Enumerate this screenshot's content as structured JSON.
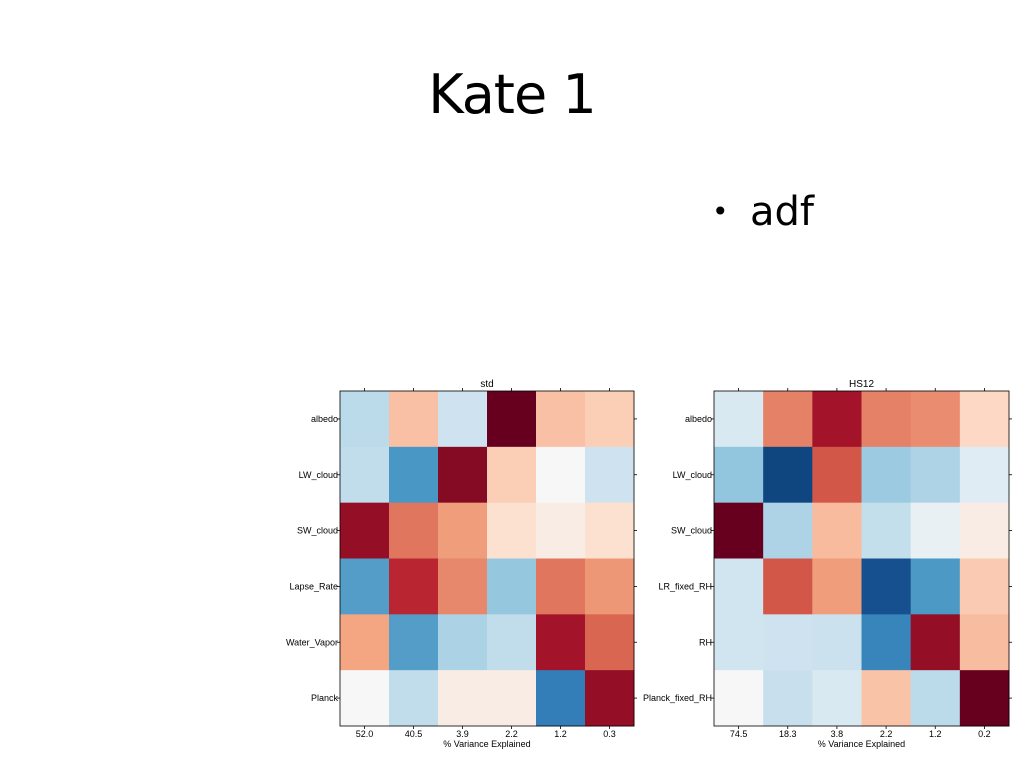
{
  "slide": {
    "title": "Kate 1",
    "bullets": [
      "adf"
    ]
  },
  "chart_data": [
    {
      "type": "heatmap",
      "title": "std",
      "xlabel": "% Variance Explained",
      "ylabel": "",
      "x": [
        "52.0",
        "40.5",
        "3.9",
        "2.2",
        "1.2",
        "0.3"
      ],
      "y": [
        "albedo",
        "LW_cloud",
        "SW_cloud",
        "Lapse_Rate",
        "Water_Vapor",
        "Planck"
      ],
      "colormap": "RdBu_r",
      "vlim": [
        -1,
        1
      ],
      "values": [
        [
          -0.12,
          0.15,
          -0.06,
          1.0,
          0.15,
          0.1
        ],
        [
          -0.1,
          -0.48,
          0.9,
          0.1,
          0.0,
          -0.06
        ],
        [
          0.85,
          0.42,
          0.28,
          0.04,
          0.02,
          0.04
        ],
        [
          -0.45,
          0.7,
          0.36,
          -0.24,
          0.42,
          0.3
        ],
        [
          0.25,
          -0.45,
          -0.17,
          -0.1,
          0.8,
          0.48
        ],
        [
          0.0,
          -0.1,
          0.02,
          0.02,
          -0.62,
          0.85
        ]
      ]
    },
    {
      "type": "heatmap",
      "title": "HS12",
      "xlabel": "% Variance Explained",
      "ylabel": "",
      "x": [
        "74.5",
        "18.3",
        "3.8",
        "2.2",
        "1.2",
        "0.2"
      ],
      "y": [
        "albedo",
        "LW_cloud",
        "SW_cloud",
        "LR_fixed_RH",
        "RH",
        "Planck_fixed_RH"
      ],
      "colormap": "RdBu_r",
      "vlim": [
        -1,
        1
      ],
      "values": [
        [
          -0.04,
          0.38,
          0.8,
          0.38,
          0.34,
          0.06
        ],
        [
          -0.25,
          -0.9,
          0.53,
          -0.22,
          -0.16,
          -0.03
        ],
        [
          1.0,
          -0.16,
          0.17,
          -0.09,
          -0.02,
          0.02
        ],
        [
          -0.05,
          0.53,
          0.28,
          -0.85,
          -0.47,
          0.11
        ],
        [
          -0.05,
          -0.06,
          -0.07,
          -0.58,
          0.85,
          0.16
        ],
        [
          0.0,
          -0.08,
          -0.04,
          0.14,
          -0.12,
          1.0
        ]
      ]
    }
  ]
}
